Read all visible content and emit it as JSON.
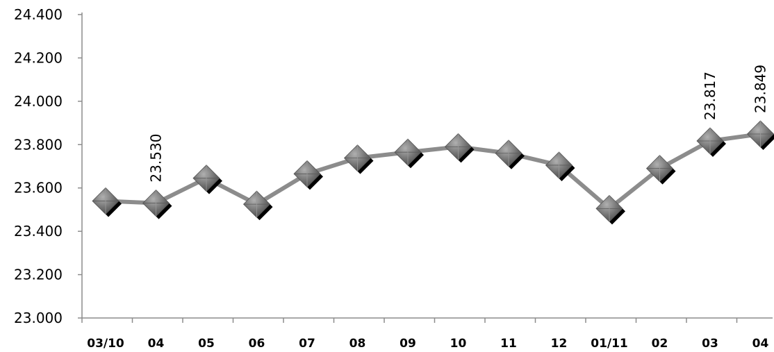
{
  "chart_data": {
    "type": "line",
    "categories": [
      "03/10",
      "04",
      "05",
      "06",
      "07",
      "08",
      "09",
      "10",
      "11",
      "12",
      "01/11",
      "02",
      "03",
      "04"
    ],
    "series": [
      {
        "values": [
          23.54,
          23.53,
          23.645,
          23.525,
          23.665,
          23.738,
          23.765,
          23.79,
          23.76,
          23.705,
          23.505,
          23.69,
          23.817,
          23.849
        ]
      }
    ],
    "data_labels": [
      {
        "index": 1,
        "text": "23.530"
      },
      {
        "index": 12,
        "text": "23.817"
      },
      {
        "index": 13,
        "text": "23.849"
      }
    ],
    "ylim": [
      23.0,
      24.4
    ],
    "yticks": [
      {
        "value": 23.0,
        "label": "23.000"
      },
      {
        "value": 23.2,
        "label": "23.200"
      },
      {
        "value": 23.4,
        "label": "23.400"
      },
      {
        "value": 23.6,
        "label": "23.600"
      },
      {
        "value": 23.8,
        "label": "23.800"
      },
      {
        "value": 24.0,
        "label": "24.000"
      },
      {
        "value": 24.2,
        "label": "24.200"
      },
      {
        "value": 24.4,
        "label": "24.400"
      }
    ],
    "grid": false,
    "legend": "none",
    "line_color": "#8c8c8c",
    "marker": "diamond",
    "marker_color": "#707070",
    "marker_shadow_color": "#000000"
  }
}
